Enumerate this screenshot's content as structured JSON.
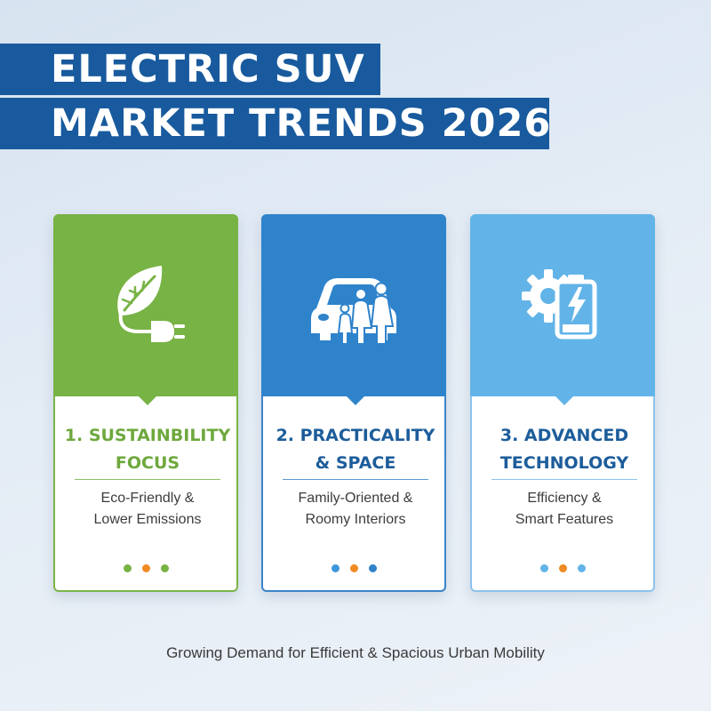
{
  "title": {
    "line1": "ELECTRIC SUV",
    "line2": "MARKET TRENDS 2026"
  },
  "cards": [
    {
      "icon": "leaf-plug-icon",
      "title_line1": "1. SUSTAINBILITY",
      "title_line2": "FOCUS",
      "desc_line1": "Eco-Friendly &",
      "desc_line2": "Lower Emissions",
      "accent": "#78b345",
      "dots": [
        "#78b345",
        "#f08a24",
        "#78b345"
      ]
    },
    {
      "icon": "car-family-icon",
      "title_line1": "2. PRACTICALITY",
      "title_line2": "& SPACE",
      "desc_line1": "Family-Oriented &",
      "desc_line2": "Roomy Interiors",
      "accent": "#2f83cb",
      "dots": [
        "#3d97dc",
        "#f08a24",
        "#2f83cb"
      ]
    },
    {
      "icon": "gear-battery-icon",
      "title_line1": "3. ADVANCED",
      "title_line2": "TECHNOLOGY",
      "desc_line1": "Efficiency &",
      "desc_line2": "Smart Features",
      "accent": "#62b4e8",
      "dots": [
        "#62b4e8",
        "#f08a24",
        "#62b4e8"
      ]
    }
  ],
  "footer": "Growing Demand for Efficient & Spacious Urban Mobility",
  "colors": {
    "banner": "#185a9d",
    "green": "#78b345",
    "blue": "#2f83cb",
    "light_blue": "#62b4e8",
    "orange": "#f08a24"
  }
}
